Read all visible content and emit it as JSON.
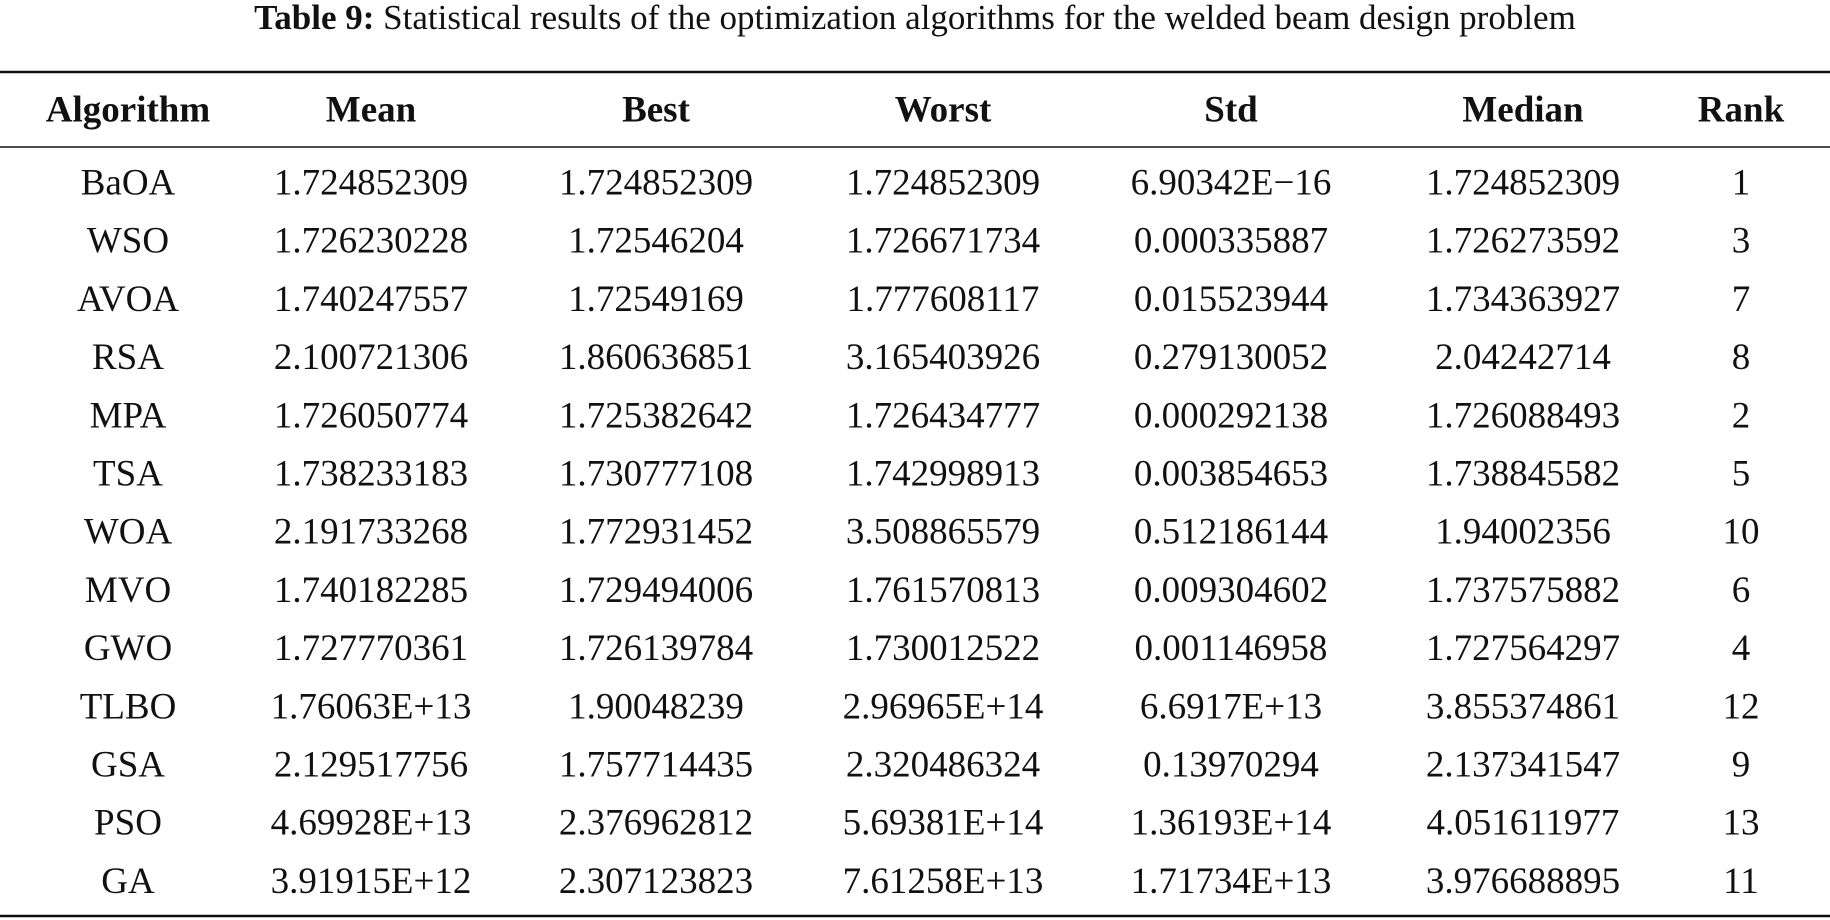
{
  "caption": {
    "label": "Table 9:",
    "text": "Statistical results of the optimization algorithms for the welded beam design problem"
  },
  "table": {
    "columns": [
      "Algorithm",
      "Mean",
      "Best",
      "Worst",
      "Std",
      "Median",
      "Rank"
    ],
    "rows": [
      [
        "BaOA",
        "1.724852309",
        "1.724852309",
        "1.724852309",
        "6.90342E−16",
        "1.724852309",
        "1"
      ],
      [
        "WSO",
        "1.726230228",
        "1.72546204",
        "1.726671734",
        "0.000335887",
        "1.726273592",
        "3"
      ],
      [
        "AVOA",
        "1.740247557",
        "1.72549169",
        "1.777608117",
        "0.015523944",
        "1.734363927",
        "7"
      ],
      [
        "RSA",
        "2.100721306",
        "1.860636851",
        "3.165403926",
        "0.279130052",
        "2.04242714",
        "8"
      ],
      [
        "MPA",
        "1.726050774",
        "1.725382642",
        "1.726434777",
        "0.000292138",
        "1.726088493",
        "2"
      ],
      [
        "TSA",
        "1.738233183",
        "1.730777108",
        "1.742998913",
        "0.003854653",
        "1.738845582",
        "5"
      ],
      [
        "WOA",
        "2.191733268",
        "1.772931452",
        "3.508865579",
        "0.512186144",
        "1.94002356",
        "10"
      ],
      [
        "MVO",
        "1.740182285",
        "1.729494006",
        "1.761570813",
        "0.009304602",
        "1.737575882",
        "6"
      ],
      [
        "GWO",
        "1.727770361",
        "1.726139784",
        "1.730012522",
        "0.001146958",
        "1.727564297",
        "4"
      ],
      [
        "TLBO",
        "1.76063E+13",
        "1.90048239",
        "2.96965E+14",
        "6.6917E+13",
        "3.855374861",
        "12"
      ],
      [
        "GSA",
        "2.129517756",
        "1.757714435",
        "2.320486324",
        "0.13970294",
        "2.137341547",
        "9"
      ],
      [
        "PSO",
        "4.69928E+13",
        "2.376962812",
        "5.69381E+14",
        "1.36193E+14",
        "4.051611977",
        "13"
      ],
      [
        "GA",
        "3.91915E+12",
        "2.307123823",
        "7.61258E+13",
        "1.71734E+13",
        "3.976688895",
        "11"
      ]
    ]
  }
}
